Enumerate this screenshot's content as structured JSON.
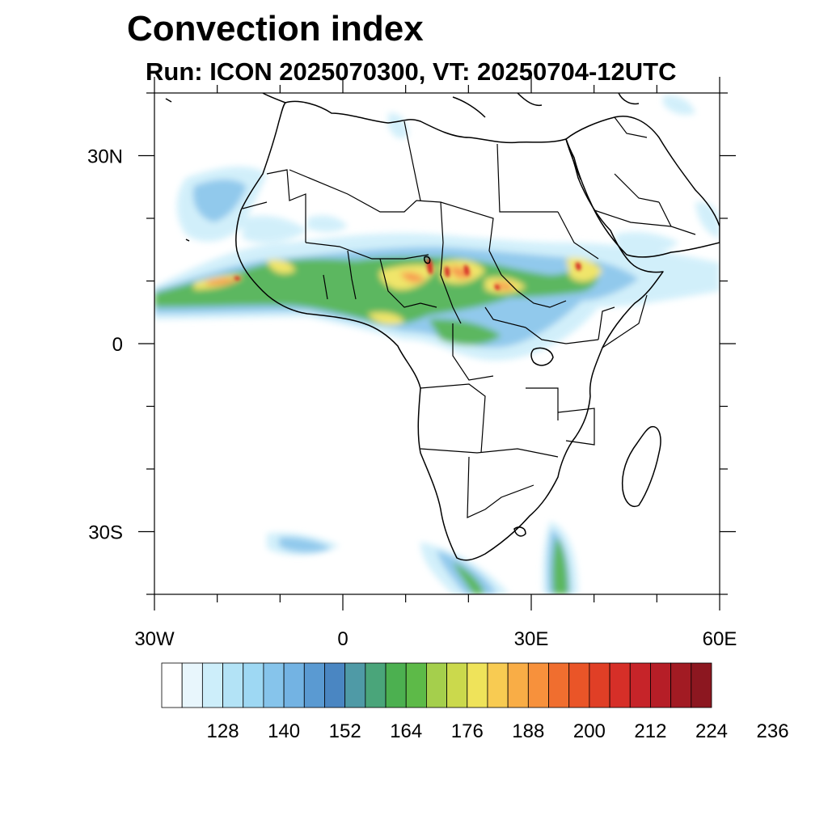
{
  "title": "Convection index",
  "subtitle": "Run: ICON 2025070300,  VT: 20250704-12UTC",
  "map": {
    "lon_range": [
      -30,
      60
    ],
    "lat_range": [
      -40,
      40
    ],
    "lon_ticks": [
      {
        "value": -30,
        "label": "30W"
      },
      {
        "value": 0,
        "label": "0"
      },
      {
        "value": 30,
        "label": "30E"
      },
      {
        "value": 60,
        "label": "60E"
      }
    ],
    "lat_ticks": [
      {
        "value": 30,
        "label": "30N"
      },
      {
        "value": 0,
        "label": "0"
      },
      {
        "value": -30,
        "label": "30S"
      }
    ]
  },
  "colorbar": {
    "colors": [
      "#ffffff",
      "#e8f6fc",
      "#cdeefa",
      "#b3e3f6",
      "#9ed8f3",
      "#86c4eb",
      "#73b3e3",
      "#5a9ad2",
      "#4a86c2",
      "#4f9aa6",
      "#4aa57a",
      "#4cb050",
      "#5dba48",
      "#a5cf4c",
      "#cbd94c",
      "#efe35a",
      "#f8cb52",
      "#f9ad46",
      "#f7913c",
      "#f06e2f",
      "#ea5528",
      "#e03f26",
      "#d62f28",
      "#c62429",
      "#b61e27",
      "#a21b23",
      "#8c1720"
    ],
    "labels": [
      "128",
      "140",
      "152",
      "164",
      "176",
      "188",
      "200",
      "212",
      "224",
      "236"
    ]
  }
}
